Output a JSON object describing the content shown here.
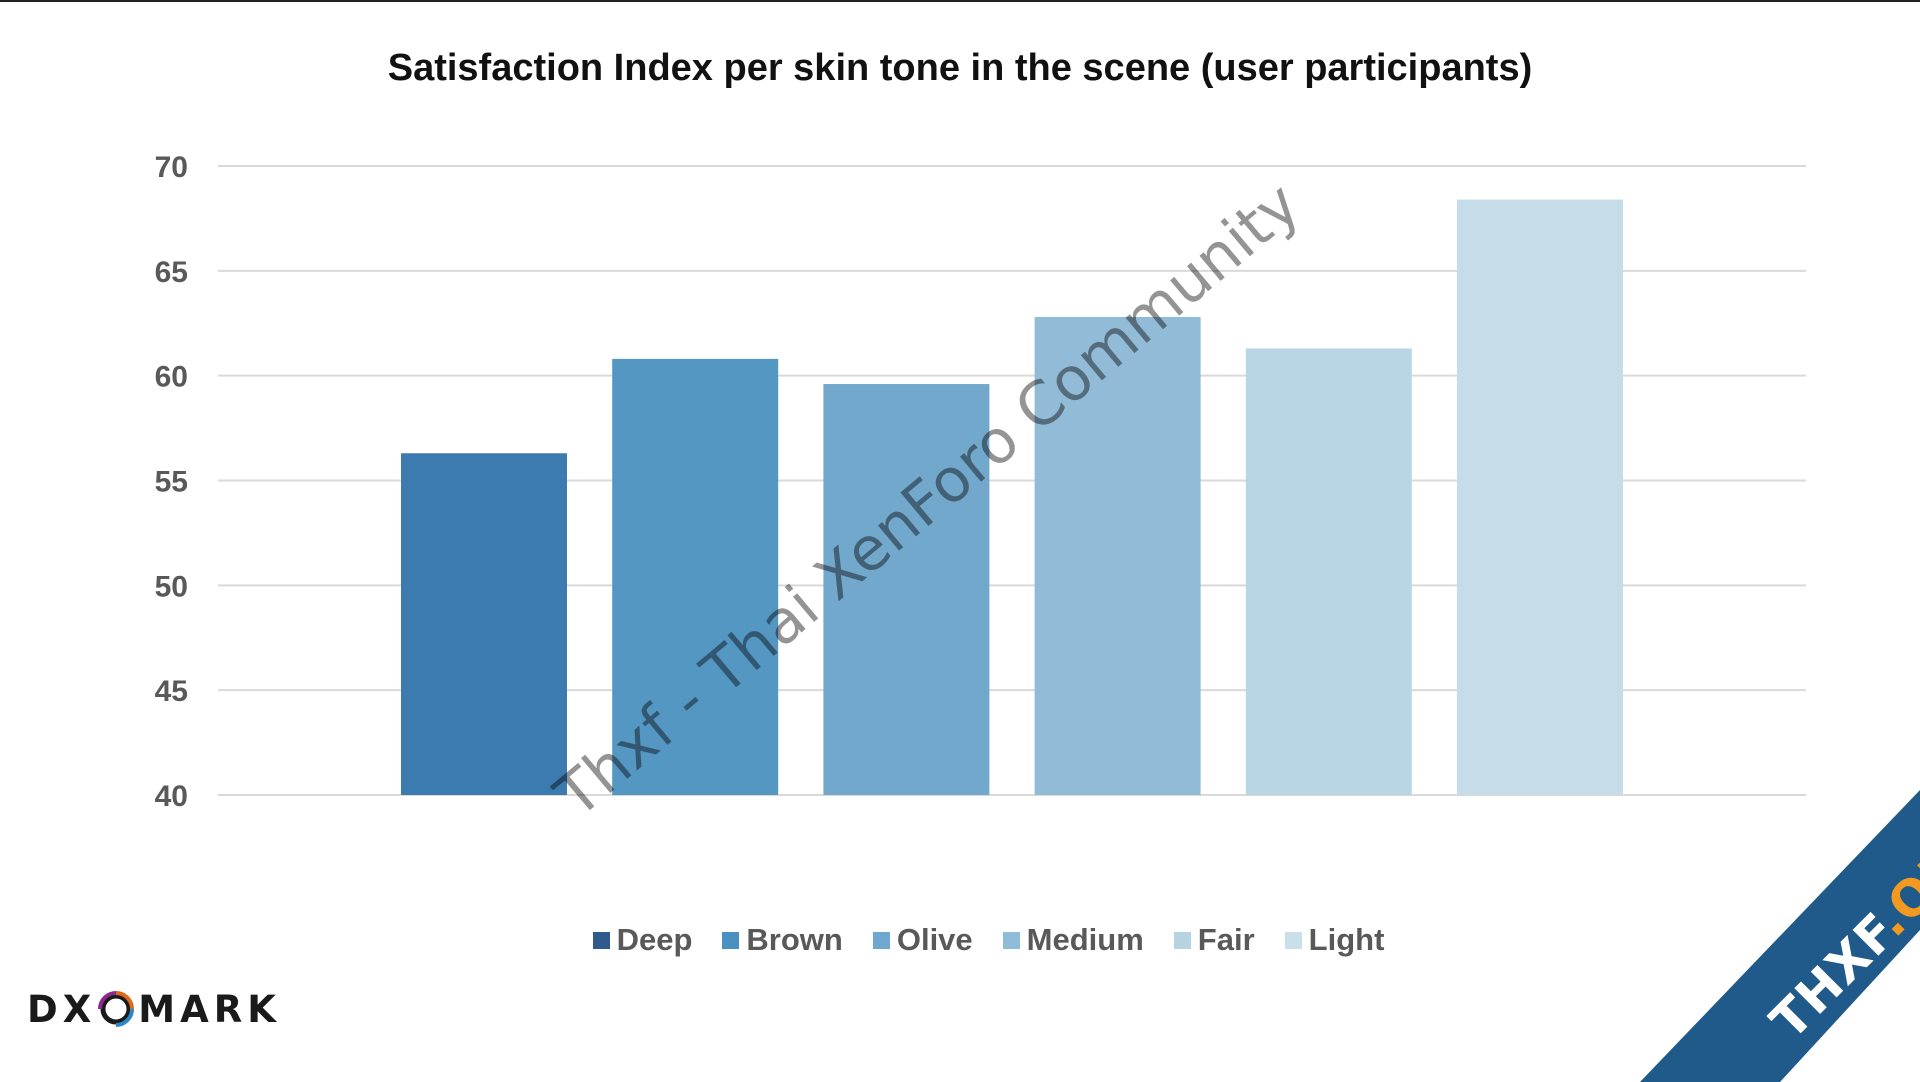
{
  "chart_data": {
    "type": "bar",
    "title": "Satisfaction Index per skin tone in the scene (user participants)",
    "categories": [
      "Deep",
      "Brown",
      "Olive",
      "Medium",
      "Fair",
      "Light"
    ],
    "values": [
      56.3,
      60.8,
      59.6,
      62.8,
      61.3,
      68.4
    ],
    "colors": [
      "#3b7bb0",
      "#5597c3",
      "#72a8cb",
      "#91bbd6",
      "#b9d6e5",
      "#c6dce8"
    ],
    "legend_colors": [
      "#2e5a8e",
      "#4a90c0",
      "#6fa8cf",
      "#8fbcd9",
      "#b6d3e3",
      "#c9dfea"
    ],
    "ylim": [
      40,
      70
    ],
    "yticks": [
      70,
      65,
      60,
      55,
      50,
      45,
      40
    ],
    "grid": true,
    "legend_position": "bottom",
    "xlabel": "",
    "ylabel": ""
  },
  "branding": {
    "logo_left": "DX",
    "logo_right": "MARK",
    "corner_banner_text": "THXF.ORG",
    "corner_banner_color": "#1f5a8a",
    "corner_banner_accent": "#f29a1f",
    "watermark_text": "Thxf - Thai XenForo Community"
  }
}
